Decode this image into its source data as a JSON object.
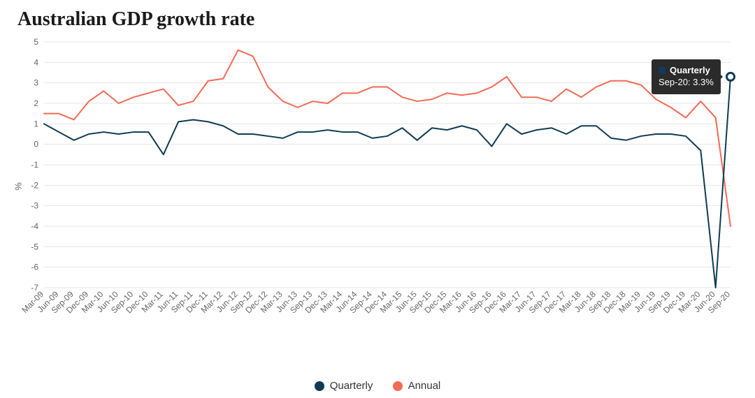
{
  "chart": {
    "type": "line",
    "title": "Australian GDP growth rate",
    "ylabel": "%",
    "background_color": "#ffffff",
    "grid_color": "#e6e6e6",
    "axis_label_color": "#666666",
    "title_color": "#1a1a1a",
    "title_fontsize": 28,
    "label_fontsize": 12,
    "line_width": 2,
    "ylim": [
      -7,
      5
    ],
    "ytick_step": 1,
    "categories": [
      "Mar-09",
      "Jun-09",
      "Sep-09",
      "Dec-09",
      "Mar-10",
      "Jun-10",
      "Sep-10",
      "Dec-10",
      "Mar-11",
      "Jun-11",
      "Sep-11",
      "Dec-11",
      "Mar-12",
      "Jun-12",
      "Sep-12",
      "Dec-12",
      "Mar-13",
      "Jun-13",
      "Sep-13",
      "Dec-13",
      "Mar-14",
      "Jun-14",
      "Sep-14",
      "Dec-14",
      "Mar-15",
      "Jun-15",
      "Sep-15",
      "Dec-15",
      "Mar-16",
      "Jun-16",
      "Sep-16",
      "Dec-16",
      "Mar-17",
      "Jun-17",
      "Sep-17",
      "Dec-17",
      "Mar-18",
      "Jun-18",
      "Sep-18",
      "Dec-18",
      "Mar-19",
      "Jun-19",
      "Sep-19",
      "Dec-19",
      "Mar-20",
      "Jun-20",
      "Sep-20"
    ],
    "series": [
      {
        "name": "Quarterly",
        "color": "#0f3b54",
        "values": [
          1.0,
          0.6,
          0.2,
          0.5,
          0.6,
          0.5,
          0.6,
          0.6,
          -0.5,
          1.1,
          1.2,
          1.1,
          0.9,
          0.5,
          0.5,
          0.4,
          0.3,
          0.6,
          0.6,
          0.7,
          0.6,
          0.6,
          0.3,
          0.4,
          0.8,
          0.2,
          0.8,
          0.7,
          0.9,
          0.7,
          -0.1,
          1.0,
          0.5,
          0.7,
          0.8,
          0.5,
          0.9,
          0.9,
          0.3,
          0.2,
          0.4,
          0.5,
          0.5,
          0.4,
          -0.3,
          -7.0,
          3.3
        ],
        "highlight_last": true,
        "highlight_marker": {
          "radius": 5.5,
          "fill": "#ffffff",
          "stroke": "#0f3b54",
          "stroke_width": 3
        }
      },
      {
        "name": "Annual",
        "color": "#f46a55",
        "values": [
          1.5,
          1.5,
          1.2,
          2.1,
          2.6,
          2.0,
          2.3,
          2.5,
          2.7,
          1.9,
          2.1,
          3.1,
          3.2,
          4.6,
          4.3,
          2.8,
          2.1,
          1.8,
          2.1,
          2.0,
          2.5,
          2.5,
          2.8,
          2.8,
          2.3,
          2.1,
          2.2,
          2.5,
          2.4,
          2.5,
          2.8,
          3.3,
          2.3,
          2.3,
          2.1,
          2.7,
          2.3,
          2.8,
          3.1,
          3.1,
          2.9,
          2.2,
          1.8,
          1.3,
          2.1,
          1.3,
          -4.0
        ],
        "highlight_last": false
      }
    ],
    "legend": {
      "position": "bottom-center",
      "items": [
        {
          "label": "Quarterly",
          "color": "#0f3b54"
        },
        {
          "label": "Annual",
          "color": "#f46a55"
        }
      ]
    },
    "tooltip": {
      "series_name": "Quarterly",
      "series_color": "#0f3b54",
      "label": "Sep-20: 3.3%",
      "anchor_index": 46,
      "background": "#2b2b2b",
      "text_color": "#ffffff"
    }
  }
}
